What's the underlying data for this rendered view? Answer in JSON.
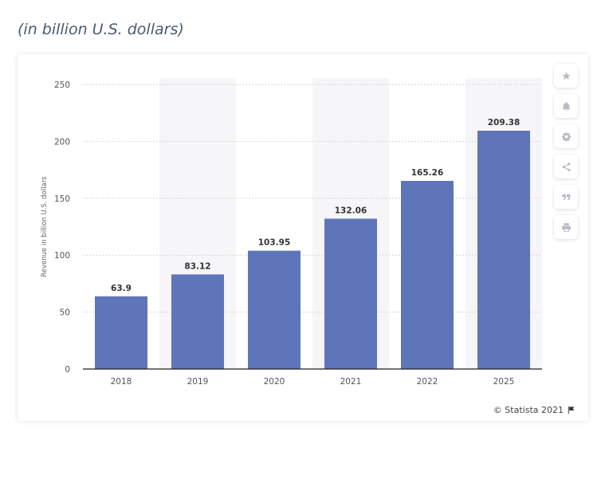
{
  "header": {
    "unit_note": "(in billion U.S. dollars)"
  },
  "toolbar": {
    "icons": [
      "star-icon",
      "bell-icon",
      "gear-icon",
      "share-icon",
      "quote-icon",
      "print-icon"
    ]
  },
  "credit": {
    "text": "© Statista 2021",
    "icon": "flag-icon"
  },
  "colors": {
    "bar": "#5f75b9",
    "band": "#f6f6f8",
    "grid": "#d6d6d6",
    "axis": "#222222"
  },
  "chart_data": {
    "type": "bar",
    "categories": [
      "2018",
      "2019",
      "2020",
      "2021",
      "2022",
      "2025"
    ],
    "values": [
      63.9,
      83.12,
      103.95,
      132.06,
      165.26,
      209.38
    ],
    "value_labels": [
      "63.9",
      "83.12",
      "103.95",
      "132.06",
      "165.26",
      "209.38"
    ],
    "ylabel": "Revenue in billion U.S. dollars",
    "ylim": [
      0,
      250
    ],
    "yticks": [
      "0",
      "50",
      "100",
      "150",
      "200",
      "250"
    ],
    "grid": true,
    "alternating_bands": true
  }
}
